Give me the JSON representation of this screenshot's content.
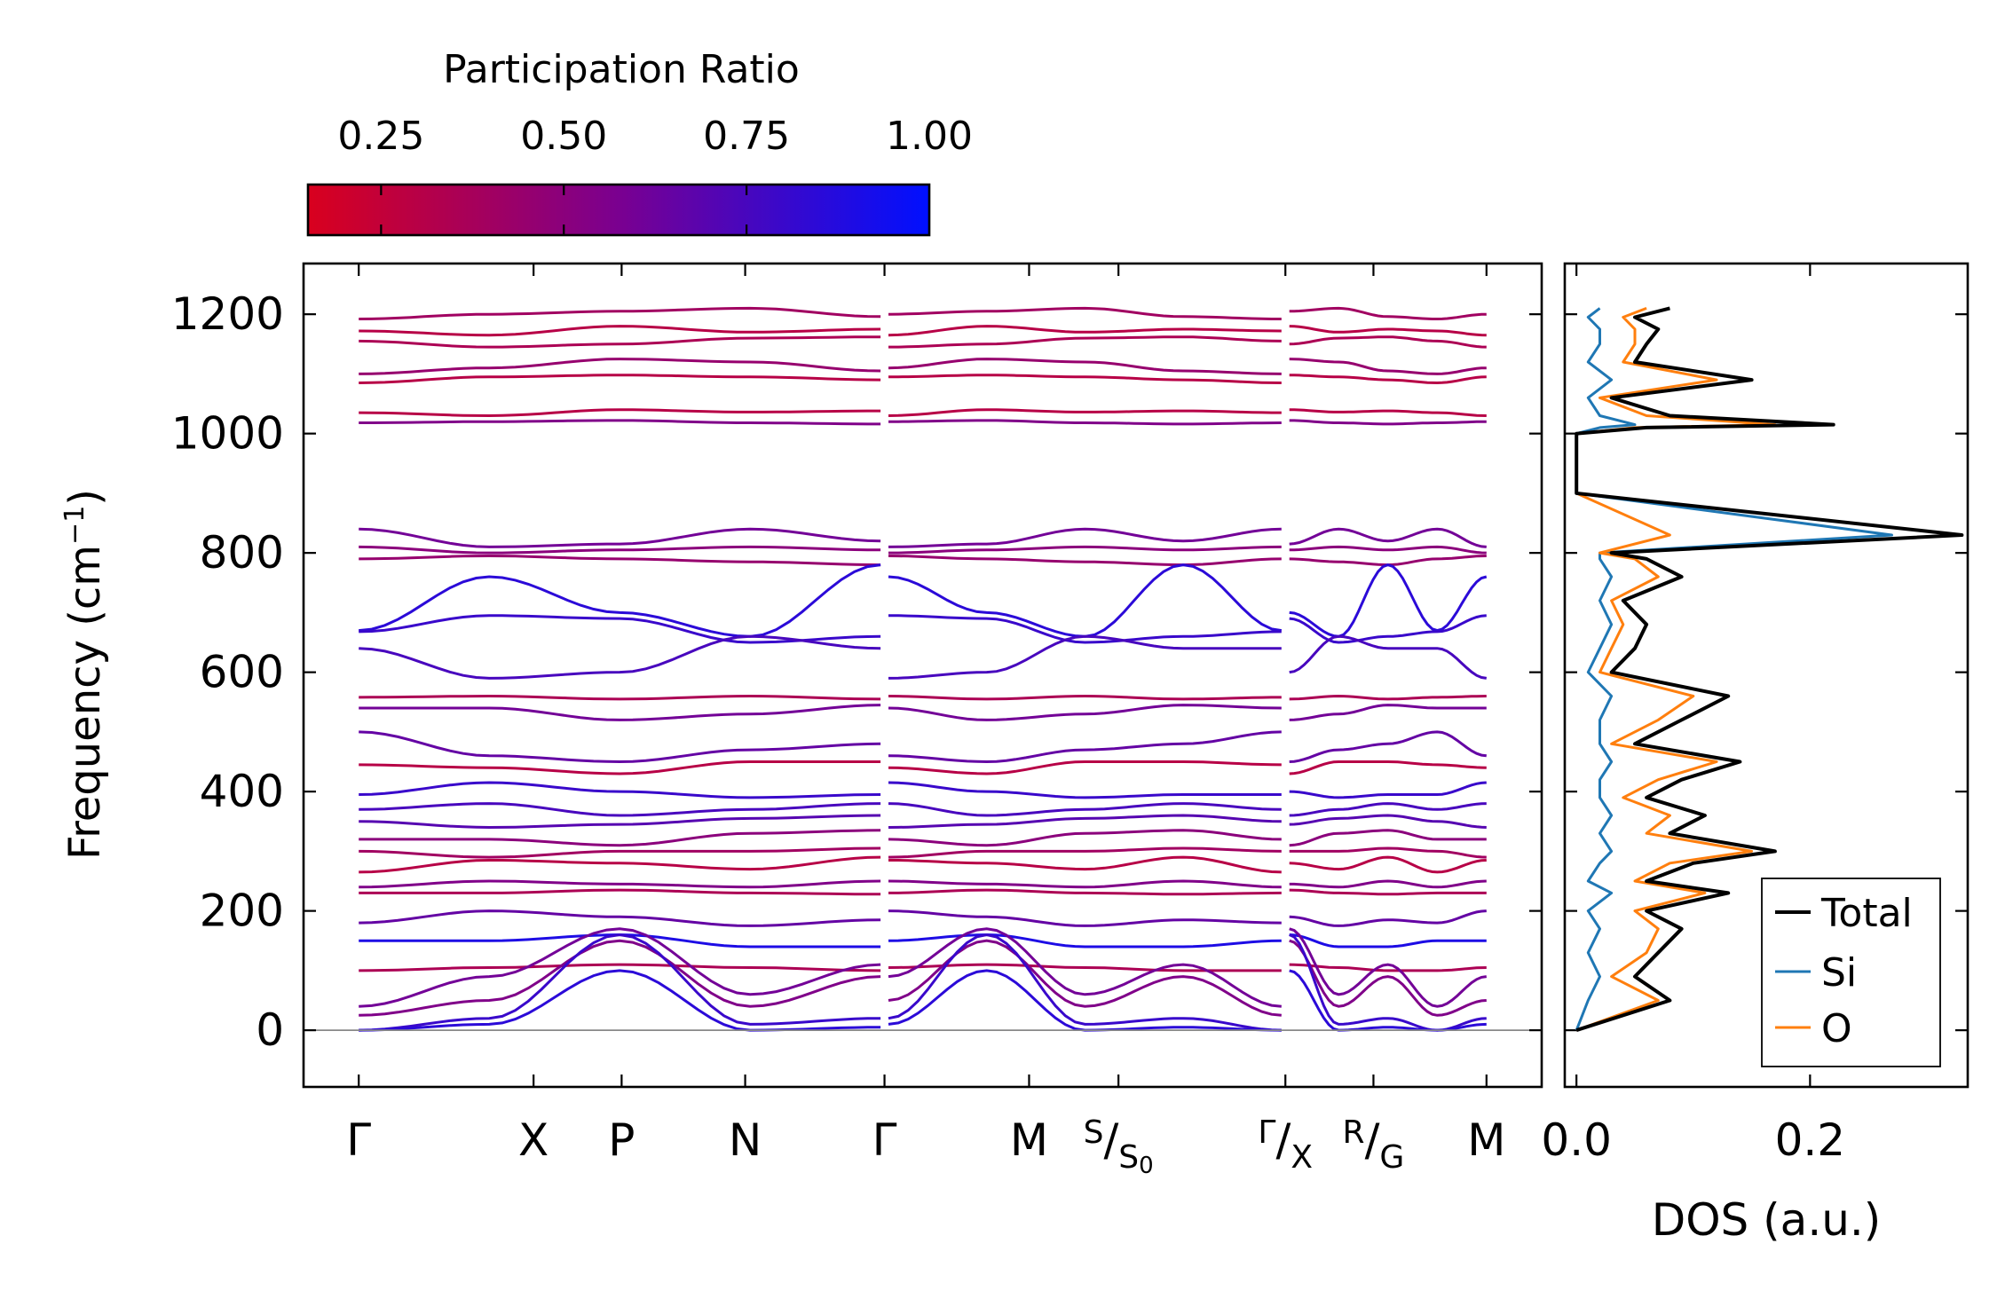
{
  "colorbar": {
    "title": "Participation Ratio",
    "ticks": [
      "0.25",
      "0.50",
      "0.75",
      "1.00"
    ],
    "tick_values": [
      0.25,
      0.5,
      0.75,
      1.0
    ],
    "range": [
      0.15,
      1.0
    ],
    "color_low": "#d9001e",
    "color_mid": "#7a0090",
    "color_high": "#0010ff"
  },
  "chart_data": [
    {
      "type": "line",
      "title": "",
      "xlabel": "",
      "ylabel": "Frequency (cm⁻¹)",
      "ylabel_text": "Frequency (cm",
      "ylabel_sup": "−1",
      "ylabel_close": ")",
      "ylim": [
        -95,
        1285
      ],
      "yticks": [
        0,
        200,
        400,
        600,
        800,
        1000,
        1200
      ],
      "ytick_labels": [
        "0",
        "200",
        "400",
        "600",
        "800",
        "1000",
        "1200"
      ],
      "xrange": [
        -0.42,
        9.0
      ],
      "kpath_labels": [
        {
          "label": "Γ",
          "x": 0.0
        },
        {
          "label": "X",
          "x": 1.33
        },
        {
          "label": "P",
          "x": 2.0
        },
        {
          "label": "N",
          "x": 2.94
        },
        {
          "label": "Γ",
          "x": 4.0
        },
        {
          "label": "M",
          "x": 5.1
        },
        {
          "label": "S",
          "sub": "S",
          "sub2": "0",
          "x": 5.78
        },
        {
          "label": "Γ",
          "sub": "X",
          "x": 7.05
        },
        {
          "label": "R",
          "sub": "G",
          "x": 7.72
        },
        {
          "label": "M",
          "x": 8.58
        }
      ],
      "segment_breaks": [
        4.0,
        7.05
      ],
      "zero_line": 0,
      "bands": [
        {
          "y": [
            1192,
            1200,
            1205,
            1210,
            1196
          ],
          "pr": 0.4
        },
        {
          "y": [
            1172,
            1165,
            1180,
            1170,
            1175
          ],
          "pr": 0.3
        },
        {
          "y": [
            1155,
            1145,
            1150,
            1160,
            1162
          ],
          "pr": 0.35
        },
        {
          "y": [
            1100,
            1110,
            1125,
            1120,
            1105
          ],
          "pr": 0.45
        },
        {
          "y": [
            1085,
            1095,
            1098,
            1095,
            1090
          ],
          "pr": 0.3
        },
        {
          "y": [
            1035,
            1030,
            1040,
            1036,
            1038
          ],
          "pr": 0.3
        },
        {
          "y": [
            1018,
            1020,
            1022,
            1018,
            1016
          ],
          "pr": 0.55
        },
        {
          "y": [
            840,
            810,
            815,
            840,
            820
          ],
          "pr": 0.6
        },
        {
          "y": [
            810,
            800,
            805,
            810,
            805
          ],
          "pr": 0.5
        },
        {
          "y": [
            790,
            795,
            790,
            785,
            780
          ],
          "pr": 0.45
        },
        {
          "y": [
            670,
            760,
            700,
            660,
            780
          ],
          "pr": 0.85
        },
        {
          "y": [
            668,
            695,
            690,
            650,
            660
          ],
          "pr": 0.8
        },
        {
          "y": [
            640,
            590,
            600,
            660,
            640
          ],
          "pr": 0.75
        },
        {
          "y": [
            558,
            560,
            555,
            560,
            555
          ],
          "pr": 0.35
        },
        {
          "y": [
            540,
            540,
            520,
            530,
            545
          ],
          "pr": 0.6
        },
        {
          "y": [
            500,
            460,
            450,
            470,
            480
          ],
          "pr": 0.65
        },
        {
          "y": [
            445,
            440,
            430,
            450,
            450
          ],
          "pr": 0.3
        },
        {
          "y": [
            395,
            415,
            400,
            390,
            395
          ],
          "pr": 0.8
        },
        {
          "y": [
            370,
            380,
            360,
            370,
            380
          ],
          "pr": 0.75
        },
        {
          "y": [
            350,
            340,
            345,
            355,
            360
          ],
          "pr": 0.7
        },
        {
          "y": [
            320,
            320,
            310,
            330,
            335
          ],
          "pr": 0.5
        },
        {
          "y": [
            300,
            290,
            300,
            300,
            305
          ],
          "pr": 0.4
        },
        {
          "y": [
            265,
            285,
            280,
            270,
            290
          ],
          "pr": 0.3
        },
        {
          "y": [
            240,
            250,
            245,
            240,
            250
          ],
          "pr": 0.55
        },
        {
          "y": [
            230,
            230,
            235,
            230,
            228
          ],
          "pr": 0.35
        },
        {
          "y": [
            180,
            200,
            190,
            175,
            185
          ],
          "pr": 0.65
        },
        {
          "y": [
            150,
            150,
            160,
            140,
            140
          ],
          "pr": 0.9
        },
        {
          "y": [
            100,
            105,
            110,
            105,
            100
          ],
          "pr": 0.35
        },
        {
          "y": [
            40,
            90,
            170,
            60,
            110
          ],
          "pr": 0.6
        },
        {
          "y": [
            25,
            50,
            150,
            40,
            90
          ],
          "pr": 0.55
        },
        {
          "y": [
            0,
            20,
            160,
            10,
            20
          ],
          "pr": 0.8
        },
        {
          "y": [
            0,
            10,
            100,
            0,
            5
          ],
          "pr": 0.85
        }
      ]
    },
    {
      "type": "line",
      "xlabel": "DOS (a.u.)",
      "xlim": [
        -0.01,
        0.335
      ],
      "xticks": [
        0.0,
        0.2
      ],
      "xtick_labels": [
        "0.0",
        "0.2"
      ],
      "ylim": [
        -95,
        1285
      ],
      "legend_position": "bottom-right",
      "series": [
        {
          "name": "Total",
          "color": "#000000",
          "y": [
            0,
            50,
            90,
            130,
            170,
            200,
            230,
            250,
            280,
            300,
            330,
            360,
            390,
            420,
            450,
            480,
            520,
            560,
            600,
            640,
            680,
            720,
            760,
            790,
            800,
            830,
            900,
            1000,
            1010,
            1015,
            1030,
            1060,
            1090,
            1120,
            1150,
            1175,
            1195,
            1210
          ],
          "values": [
            0.0,
            0.08,
            0.05,
            0.07,
            0.09,
            0.06,
            0.13,
            0.06,
            0.1,
            0.17,
            0.08,
            0.11,
            0.06,
            0.09,
            0.14,
            0.05,
            0.09,
            0.13,
            0.03,
            0.05,
            0.06,
            0.04,
            0.09,
            0.06,
            0.03,
            0.33,
            0.0,
            0.0,
            0.06,
            0.22,
            0.08,
            0.03,
            0.15,
            0.05,
            0.06,
            0.07,
            0.05,
            0.08
          ]
        },
        {
          "name": "Si",
          "color": "#1f77b4",
          "y": [
            0,
            50,
            90,
            130,
            170,
            200,
            230,
            250,
            280,
            300,
            330,
            360,
            390,
            420,
            450,
            480,
            520,
            560,
            600,
            640,
            680,
            720,
            760,
            790,
            800,
            830,
            900,
            1000,
            1010,
            1015,
            1030,
            1060,
            1090,
            1120,
            1150,
            1175,
            1195,
            1210
          ],
          "values": [
            0.0,
            0.01,
            0.02,
            0.01,
            0.02,
            0.01,
            0.03,
            0.01,
            0.02,
            0.03,
            0.02,
            0.03,
            0.02,
            0.02,
            0.03,
            0.02,
            0.02,
            0.03,
            0.01,
            0.02,
            0.03,
            0.02,
            0.03,
            0.02,
            0.02,
            0.27,
            0.0,
            0.0,
            0.02,
            0.05,
            0.02,
            0.01,
            0.03,
            0.01,
            0.02,
            0.02,
            0.01,
            0.02
          ]
        },
        {
          "name": "O",
          "color": "#ff7f0e",
          "y": [
            0,
            50,
            90,
            130,
            170,
            200,
            230,
            250,
            280,
            300,
            330,
            360,
            390,
            420,
            450,
            480,
            520,
            560,
            600,
            640,
            680,
            720,
            760,
            790,
            800,
            830,
            900,
            1000,
            1010,
            1015,
            1030,
            1060,
            1090,
            1120,
            1150,
            1175,
            1195,
            1210
          ],
          "values": [
            0.0,
            0.07,
            0.03,
            0.06,
            0.07,
            0.05,
            0.11,
            0.05,
            0.08,
            0.15,
            0.06,
            0.08,
            0.04,
            0.07,
            0.12,
            0.03,
            0.07,
            0.1,
            0.02,
            0.03,
            0.04,
            0.03,
            0.07,
            0.05,
            0.02,
            0.08,
            0.0,
            0.0,
            0.05,
            0.17,
            0.06,
            0.02,
            0.12,
            0.04,
            0.05,
            0.05,
            0.04,
            0.06
          ]
        }
      ]
    }
  ]
}
